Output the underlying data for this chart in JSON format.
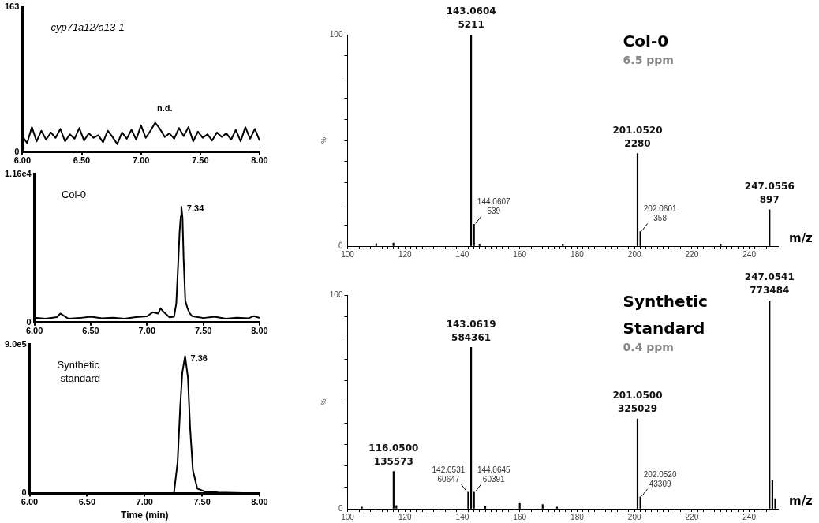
{
  "chart_data": [
    {
      "type": "line",
      "title": "cyp71a12/a13-1",
      "annotations": [
        "n.d."
      ],
      "xlim": [
        6,
        8
      ],
      "xticks": [
        {
          "value": 6,
          "label": "6.00"
        },
        {
          "value": 6.5,
          "label": "6.50"
        },
        {
          "value": 7,
          "label": "7.00"
        },
        {
          "value": 7.5,
          "label": "7.50"
        },
        {
          "value": 8,
          "label": "8.00"
        }
      ],
      "ylim": [
        0,
        163
      ],
      "yticks": [
        0,
        163
      ],
      "grid": false,
      "legend": false,
      "marker": "none",
      "line_style": "solid",
      "series": [
        {
          "color": "#000000",
          "x": [
            6,
            6.04,
            6.08,
            6.12,
            6.16,
            6.2,
            6.24,
            6.28,
            6.32,
            6.36,
            6.4,
            6.44,
            6.48,
            6.52,
            6.56,
            6.6,
            6.64,
            6.68,
            6.72,
            6.76,
            6.8,
            6.84,
            6.88,
            6.92,
            6.96,
            7,
            7.04,
            7.08,
            7.12,
            7.16,
            7.2,
            7.24,
            7.28,
            7.32,
            7.36,
            7.4,
            7.44,
            7.48,
            7.52,
            7.56,
            7.6,
            7.64,
            7.68,
            7.72,
            7.76,
            7.8,
            7.84,
            7.88,
            7.92,
            7.96,
            8
          ],
          "values": [
            18,
            10,
            28,
            12,
            24,
            14,
            22,
            16,
            26,
            12,
            20,
            15,
            27,
            13,
            21,
            16,
            19,
            11,
            24,
            17,
            9,
            22,
            15,
            25,
            14,
            30,
            16,
            24,
            33,
            26,
            17,
            21,
            15,
            27,
            18,
            28,
            12,
            23,
            16,
            20,
            13,
            22,
            17,
            21,
            14,
            25,
            12,
            28,
            15,
            26,
            13
          ]
        }
      ]
    },
    {
      "type": "line",
      "title": "Col-0",
      "annotations": [
        {
          "text": "7.34",
          "x": 7.305,
          "y": 9050
        }
      ],
      "xlim": [
        6,
        8
      ],
      "xticks": [
        {
          "value": 6,
          "label": "6.00"
        },
        {
          "value": 6.5,
          "label": "6.50"
        },
        {
          "value": 7,
          "label": "7.00"
        },
        {
          "value": 7.5,
          "label": "7.50"
        },
        {
          "value": 8,
          "label": "8.00"
        }
      ],
      "ylim": [
        0,
        11600
      ],
      "yticks": [
        0,
        {
          "value": 11600,
          "label": "1.16e4"
        }
      ],
      "grid": false,
      "legend": false,
      "marker": "none",
      "line_style": "solid",
      "series": [
        {
          "color": "#000000",
          "x": [
            6,
            6.1,
            6.2,
            6.23,
            6.3,
            6.4,
            6.5,
            6.6,
            6.7,
            6.8,
            6.9,
            7,
            7.05,
            7.1,
            7.12,
            7.15,
            7.2,
            7.24,
            7.26,
            7.28,
            7.29,
            7.3,
            7.305,
            7.315,
            7.325,
            7.34,
            7.36,
            7.38,
            7.4,
            7.45,
            7.5,
            7.6,
            7.7,
            7.8,
            7.9,
            7.95,
            8
          ],
          "values": [
            380,
            300,
            420,
            700,
            300,
            350,
            450,
            320,
            380,
            300,
            420,
            480,
            800,
            700,
            1100,
            800,
            400,
            450,
            1500,
            5200,
            7200,
            8300,
            9050,
            8200,
            5000,
            1700,
            1100,
            700,
            500,
            420,
            350,
            450,
            300,
            380,
            320,
            500,
            350
          ]
        }
      ]
    },
    {
      "type": "line",
      "title": "Synthetic standard",
      "xlabel": "Time (min)",
      "annotations": [
        {
          "text": "7.36",
          "x": 7.352,
          "y": 829000
        }
      ],
      "xlim": [
        6,
        8
      ],
      "xticks": [
        {
          "value": 6,
          "label": "6.00"
        },
        {
          "value": 6.5,
          "label": "6.50"
        },
        {
          "value": 7,
          "label": "7.00"
        },
        {
          "value": 7.5,
          "label": "7.50"
        },
        {
          "value": 8,
          "label": "8.00"
        }
      ],
      "ylim": [
        0,
        900000
      ],
      "yticks": [
        0,
        {
          "value": 900000,
          "label": "9.0e5"
        }
      ],
      "grid": false,
      "legend": false,
      "marker": "none",
      "line_style": "solid",
      "series": [
        {
          "color": "#000000",
          "x": [
            6,
            7,
            7.255,
            7.287,
            7.31,
            7.328,
            7.352,
            7.377,
            7.396,
            7.42,
            7.458,
            7.52,
            7.64,
            8
          ],
          "values": [
            0,
            0,
            0,
            190000,
            528000,
            731000,
            829000,
            697000,
            392000,
            139000,
            29000,
            12000,
            5000,
            0
          ]
        }
      ]
    },
    {
      "type": "bar",
      "title": "Col-0",
      "subtitle": "6.5 ppm",
      "xlabel": "m/z",
      "ylabel": "%",
      "xlim": [
        100,
        250
      ],
      "xticks": [
        100,
        {
          "value": 102,
          "label": null
        },
        {
          "value": 104,
          "label": null
        },
        {
          "value": 106,
          "label": null
        },
        {
          "value": 108,
          "label": null
        },
        {
          "value": 110,
          "label": null
        },
        {
          "value": 112,
          "label": null
        },
        {
          "value": 114,
          "label": null
        },
        {
          "value": 116,
          "label": null
        },
        {
          "value": 118,
          "label": null
        },
        120,
        {
          "value": 122,
          "label": null
        },
        {
          "value": 124,
          "label": null
        },
        {
          "value": 126,
          "label": null
        },
        {
          "value": 128,
          "label": null
        },
        {
          "value": 130,
          "label": null
        },
        {
          "value": 132,
          "label": null
        },
        {
          "value": 134,
          "label": null
        },
        {
          "value": 136,
          "label": null
        },
        {
          "value": 138,
          "label": null
        },
        140,
        {
          "value": 142,
          "label": null
        },
        {
          "value": 144,
          "label": null
        },
        {
          "value": 146,
          "label": null
        },
        {
          "value": 148,
          "label": null
        },
        {
          "value": 150,
          "label": null
        },
        {
          "value": 152,
          "label": null
        },
        {
          "value": 154,
          "label": null
        },
        {
          "value": 156,
          "label": null
        },
        {
          "value": 158,
          "label": null
        },
        160,
        {
          "value": 162,
          "label": null
        },
        {
          "value": 164,
          "label": null
        },
        {
          "value": 166,
          "label": null
        },
        {
          "value": 168,
          "label": null
        },
        {
          "value": 170,
          "label": null
        },
        {
          "value": 172,
          "label": null
        },
        {
          "value": 174,
          "label": null
        },
        {
          "value": 176,
          "label": null
        },
        {
          "value": 178,
          "label": null
        },
        180,
        {
          "value": 182,
          "label": null
        },
        {
          "value": 184,
          "label": null
        },
        {
          "value": 186,
          "label": null
        },
        {
          "value": 188,
          "label": null
        },
        {
          "value": 190,
          "label": null
        },
        {
          "value": 192,
          "label": null
        },
        {
          "value": 194,
          "label": null
        },
        {
          "value": 196,
          "label": null
        },
        {
          "value": 198,
          "label": null
        },
        200,
        {
          "value": 202,
          "label": null
        },
        {
          "value": 204,
          "label": null
        },
        {
          "value": 206,
          "label": null
        },
        {
          "value": 208,
          "label": null
        },
        {
          "value": 210,
          "label": null
        },
        {
          "value": 212,
          "label": null
        },
        {
          "value": 214,
          "label": null
        },
        {
          "value": 216,
          "label": null
        },
        {
          "value": 218,
          "label": null
        },
        220,
        {
          "value": 222,
          "label": null
        },
        {
          "value": 224,
          "label": null
        },
        {
          "value": 226,
          "label": null
        },
        {
          "value": 228,
          "label": null
        },
        {
          "value": 230,
          "label": null
        },
        {
          "value": 232,
          "label": null
        },
        {
          "value": 234,
          "label": null
        },
        {
          "value": 236,
          "label": null
        },
        {
          "value": 238,
          "label": null
        },
        240,
        {
          "value": 242,
          "label": null
        },
        {
          "value": 244,
          "label": null
        },
        {
          "value": 246,
          "label": null
        },
        {
          "value": 248,
          "label": null
        }
      ],
      "ylim": [
        0,
        100
      ],
      "yticks": [
        0,
        {
          "value": 10,
          "label": null
        },
        {
          "value": 20,
          "label": null
        },
        {
          "value": 30,
          "label": null
        },
        {
          "value": 40,
          "label": null
        },
        {
          "value": 50,
          "label": null
        },
        {
          "value": 60,
          "label": null
        },
        {
          "value": 70,
          "label": null
        },
        {
          "value": 80,
          "label": null
        },
        {
          "value": 90,
          "label": null
        },
        100
      ],
      "grid": false,
      "legend": false,
      "annotations": [
        {
          "text": "143.0604\n5211",
          "x": 143.0604,
          "y": 100
        },
        {
          "text": "144.0607\n539",
          "x": 144.0607,
          "y": 10.3
        },
        {
          "text": "201.0520\n2280",
          "x": 201.052,
          "y": 43.8
        },
        {
          "text": "202.0601\n358",
          "x": 202.0601,
          "y": 6.9
        },
        {
          "text": "247.0556\n897",
          "x": 247.0556,
          "y": 17.2
        }
      ],
      "series": [
        {
          "color": "#000000",
          "x": [
            110,
            116,
            143.0604,
            144.0607,
            146,
            175,
            201.052,
            202.0601,
            230,
            247.0556
          ],
          "values": [
            1.2,
            1.5,
            100,
            10.3,
            1,
            1,
            43.8,
            6.9,
            1,
            17.2
          ]
        }
      ]
    },
    {
      "type": "bar",
      "title": "Synthetic Standard",
      "subtitle": "0.4 ppm",
      "xlabel": "m/z",
      "ylabel": "%",
      "xlim": [
        100,
        250
      ],
      "xticks": [
        100,
        {
          "value": 102,
          "label": null
        },
        {
          "value": 104,
          "label": null
        },
        {
          "value": 106,
          "label": null
        },
        {
          "value": 108,
          "label": null
        },
        {
          "value": 110,
          "label": null
        },
        {
          "value": 112,
          "label": null
        },
        {
          "value": 114,
          "label": null
        },
        {
          "value": 116,
          "label": null
        },
        {
          "value": 118,
          "label": null
        },
        120,
        {
          "value": 122,
          "label": null
        },
        {
          "value": 124,
          "label": null
        },
        {
          "value": 126,
          "label": null
        },
        {
          "value": 128,
          "label": null
        },
        {
          "value": 130,
          "label": null
        },
        {
          "value": 132,
          "label": null
        },
        {
          "value": 134,
          "label": null
        },
        {
          "value": 136,
          "label": null
        },
        {
          "value": 138,
          "label": null
        },
        140,
        {
          "value": 142,
          "label": null
        },
        {
          "value": 144,
          "label": null
        },
        {
          "value": 146,
          "label": null
        },
        {
          "value": 148,
          "label": null
        },
        {
          "value": 150,
          "label": null
        },
        {
          "value": 152,
          "label": null
        },
        {
          "value": 154,
          "label": null
        },
        {
          "value": 156,
          "label": null
        },
        {
          "value": 158,
          "label": null
        },
        160,
        {
          "value": 162,
          "label": null
        },
        {
          "value": 164,
          "label": null
        },
        {
          "value": 166,
          "label": null
        },
        {
          "value": 168,
          "label": null
        },
        {
          "value": 170,
          "label": null
        },
        {
          "value": 172,
          "label": null
        },
        {
          "value": 174,
          "label": null
        },
        {
          "value": 176,
          "label": null
        },
        {
          "value": 178,
          "label": null
        },
        180,
        {
          "value": 182,
          "label": null
        },
        {
          "value": 184,
          "label": null
        },
        {
          "value": 186,
          "label": null
        },
        {
          "value": 188,
          "label": null
        },
        {
          "value": 190,
          "label": null
        },
        {
          "value": 192,
          "label": null
        },
        {
          "value": 194,
          "label": null
        },
        {
          "value": 196,
          "label": null
        },
        {
          "value": 198,
          "label": null
        },
        200,
        {
          "value": 202,
          "label": null
        },
        {
          "value": 204,
          "label": null
        },
        {
          "value": 206,
          "label": null
        },
        {
          "value": 208,
          "label": null
        },
        {
          "value": 210,
          "label": null
        },
        {
          "value": 212,
          "label": null
        },
        {
          "value": 214,
          "label": null
        },
        {
          "value": 216,
          "label": null
        },
        {
          "value": 218,
          "label": null
        },
        220,
        {
          "value": 222,
          "label": null
        },
        {
          "value": 224,
          "label": null
        },
        {
          "value": 226,
          "label": null
        },
        {
          "value": 228,
          "label": null
        },
        {
          "value": 230,
          "label": null
        },
        {
          "value": 232,
          "label": null
        },
        {
          "value": 234,
          "label": null
        },
        {
          "value": 236,
          "label": null
        },
        {
          "value": 238,
          "label": null
        },
        240,
        {
          "value": 242,
          "label": null
        },
        {
          "value": 244,
          "label": null
        },
        {
          "value": 246,
          "label": null
        },
        {
          "value": 248,
          "label": null
        }
      ],
      "ylim": [
        0,
        100
      ],
      "yticks": [
        0,
        {
          "value": 10,
          "label": null
        },
        {
          "value": 20,
          "label": null
        },
        {
          "value": 30,
          "label": null
        },
        {
          "value": 40,
          "label": null
        },
        {
          "value": 50,
          "label": null
        },
        {
          "value": 60,
          "label": null
        },
        {
          "value": 70,
          "label": null
        },
        {
          "value": 80,
          "label": null
        },
        {
          "value": 90,
          "label": null
        },
        100
      ],
      "grid": false,
      "legend": false,
      "annotations": [
        {
          "text": "116.0500\n135573",
          "x": 116.05,
          "y": 17.5
        },
        {
          "text": "142.0531\n60647",
          "x": 142.0531,
          "y": 7.8
        },
        {
          "text": "143.0619\n584361",
          "x": 143.0619,
          "y": 75.5
        },
        {
          "text": "144.0645\n60391",
          "x": 144.0645,
          "y": 7.8
        },
        {
          "text": "201.0500\n325029",
          "x": 201.05,
          "y": 42
        },
        {
          "text": "202.0520\n43309",
          "x": 202.052,
          "y": 5.6
        },
        {
          "text": "247.0541\n773484",
          "x": 247.0541,
          "y": 97.3
        }
      ],
      "series": [
        {
          "color": "#000000",
          "x": [
            105,
            116.05,
            117,
            142.0531,
            143.0619,
            144.0645,
            148,
            160,
            168,
            173,
            201.05,
            202.052,
            247.0541,
            248.05,
            249.05
          ],
          "values": [
            0.8,
            17.5,
            1.5,
            7.8,
            75.5,
            7.8,
            1.2,
            2.5,
            2,
            0.8,
            42,
            5.6,
            97.3,
            13.2,
            4.8
          ]
        }
      ]
    }
  ]
}
